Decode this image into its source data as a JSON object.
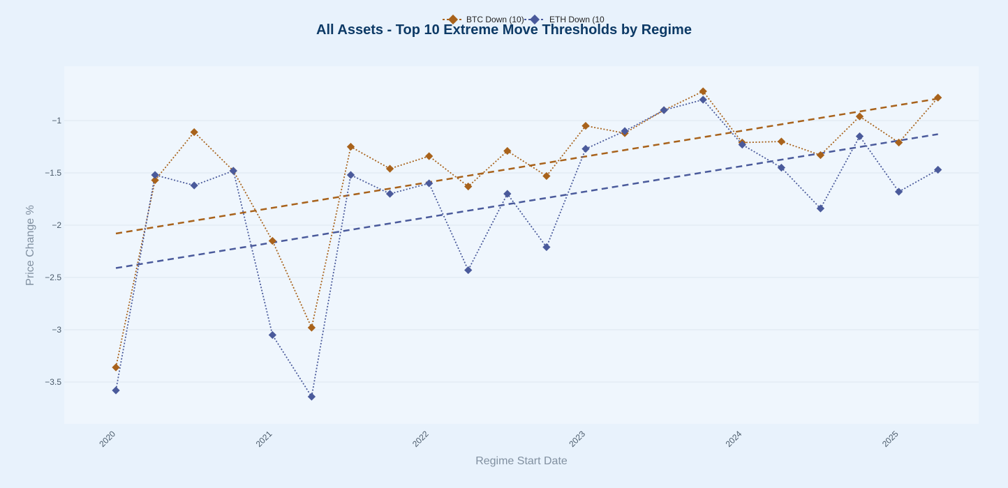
{
  "chart_data": {
    "type": "line",
    "title": "All Assets - Top 10 Extreme Move Thresholds by Regime",
    "xlabel": "Regime Start Date",
    "ylabel": "Price Change %",
    "x_tick_labels": [
      "2020",
      "2021",
      "2022",
      "2023",
      "2024",
      "2025"
    ],
    "y_ticks": [
      -1,
      -1.5,
      -2,
      -2.5,
      -3,
      -3.5
    ],
    "y_tick_labels": [
      "−1",
      "−1.5",
      "−2",
      "−2.5",
      "−3",
      "−3.5"
    ],
    "xlim": [
      2019.67,
      2025.51
    ],
    "ylim": [
      -3.9,
      -0.48
    ],
    "grid": true,
    "legend_position": "top-center",
    "x": [
      2020.0,
      2020.25,
      2020.5,
      2020.75,
      2021.0,
      2021.25,
      2021.5,
      2021.75,
      2022.0,
      2022.25,
      2022.5,
      2022.75,
      2023.0,
      2023.25,
      2023.5,
      2023.75,
      2024.0,
      2024.25,
      2024.5,
      2024.75,
      2025.0,
      2025.25
    ],
    "series": [
      {
        "name": "BTC Down (10)",
        "color": "#a8621b",
        "values": [
          -3.36,
          -1.57,
          -1.11,
          -1.48,
          -2.15,
          -2.98,
          -1.25,
          -1.46,
          -1.34,
          -1.63,
          -1.29,
          -1.53,
          -1.05,
          -1.12,
          -0.9,
          -0.72,
          -1.21,
          -1.2,
          -1.33,
          -0.96,
          -1.21,
          -0.78
        ],
        "trend": [
          -2.08,
          -0.79
        ]
      },
      {
        "name": "ETH Down (10)",
        "color": "#4a5a9b",
        "values": [
          -3.58,
          -1.52,
          -1.62,
          -1.48,
          -3.05,
          -3.64,
          -1.52,
          -1.7,
          -1.6,
          -2.43,
          -1.7,
          -2.21,
          -1.27,
          -1.1,
          -0.9,
          -0.8,
          -1.23,
          -1.45,
          -1.84,
          -1.15,
          -1.68,
          -1.47
        ],
        "trend": [
          -2.41,
          -1.13
        ]
      }
    ]
  },
  "legend": {
    "items": [
      "BTC Down (10)",
      "ETH Down (10"
    ]
  },
  "colors": {
    "background": "#e8f2fc",
    "plot_background": "#eff6fd",
    "grid": "#dde6f0"
  }
}
